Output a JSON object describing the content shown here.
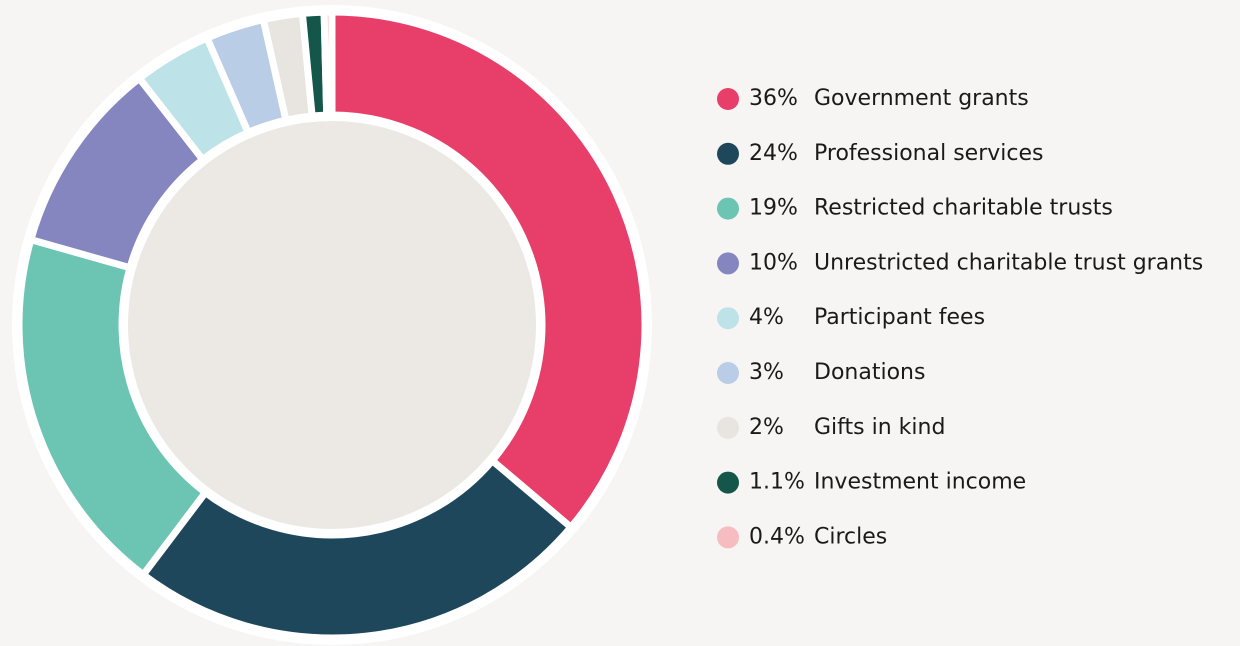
{
  "chart_data": {
    "type": "pie",
    "categories": [
      "Government grants",
      "Professional services",
      "Restricted charitable trusts",
      "Unrestricted charitable trust grants",
      "Participant fees",
      "Donations",
      "Gifts in kind",
      "Investment income",
      "Circles"
    ],
    "values": [
      36,
      24,
      19,
      10,
      4,
      3,
      2,
      1.1,
      0.4
    ],
    "value_labels": [
      "36%",
      "24%",
      "19%",
      "10%",
      "4%",
      "3%",
      "2%",
      "1.1%",
      "0.4%"
    ],
    "colors": [
      "#e83e6a",
      "#1f475c",
      "#6cc4b3",
      "#8585c0",
      "#bde3e8",
      "#b9cde6",
      "#e8e4df",
      "#14574a",
      "#f7bcc0"
    ],
    "legend": "right"
  }
}
